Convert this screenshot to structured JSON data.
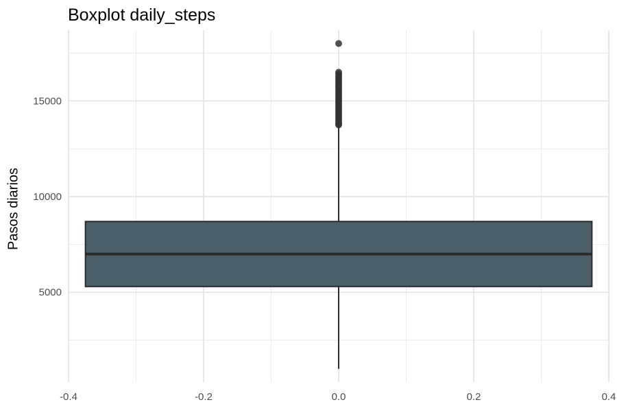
{
  "chart_data": {
    "type": "boxplot",
    "title": "Boxplot daily_steps",
    "xlabel": "",
    "ylabel": "Pasos diarios",
    "x_ticks": [
      "-0.4",
      "-0.2",
      "0.0",
      "0.2",
      "0.4"
    ],
    "x_tick_values": [
      -0.4,
      -0.2,
      0.0,
      0.2,
      0.4
    ],
    "y_ticks": [
      "5000",
      "10000",
      "15000"
    ],
    "y_tick_values": [
      5000,
      10000,
      15000
    ],
    "xlim": [
      -0.4,
      0.4
    ],
    "ylim": [
      300,
      18700
    ],
    "grid": true,
    "box": {
      "x_center": 0.0,
      "x_left": -0.375,
      "x_right": 0.375,
      "min": 1000,
      "q1": 5300,
      "median": 7000,
      "q3": 8700,
      "whisker_high": 13700,
      "fill": "#4b5f68",
      "stroke": "#2b2b2b"
    },
    "outliers": [
      13750,
      13800,
      13900,
      14000,
      14100,
      14200,
      14300,
      14400,
      14500,
      14600,
      14700,
      14800,
      14900,
      15000,
      15100,
      15200,
      15300,
      15400,
      15500,
      15600,
      15700,
      15800,
      15900,
      16000,
      16100,
      16200,
      16300,
      16400,
      16500,
      18000
    ]
  }
}
